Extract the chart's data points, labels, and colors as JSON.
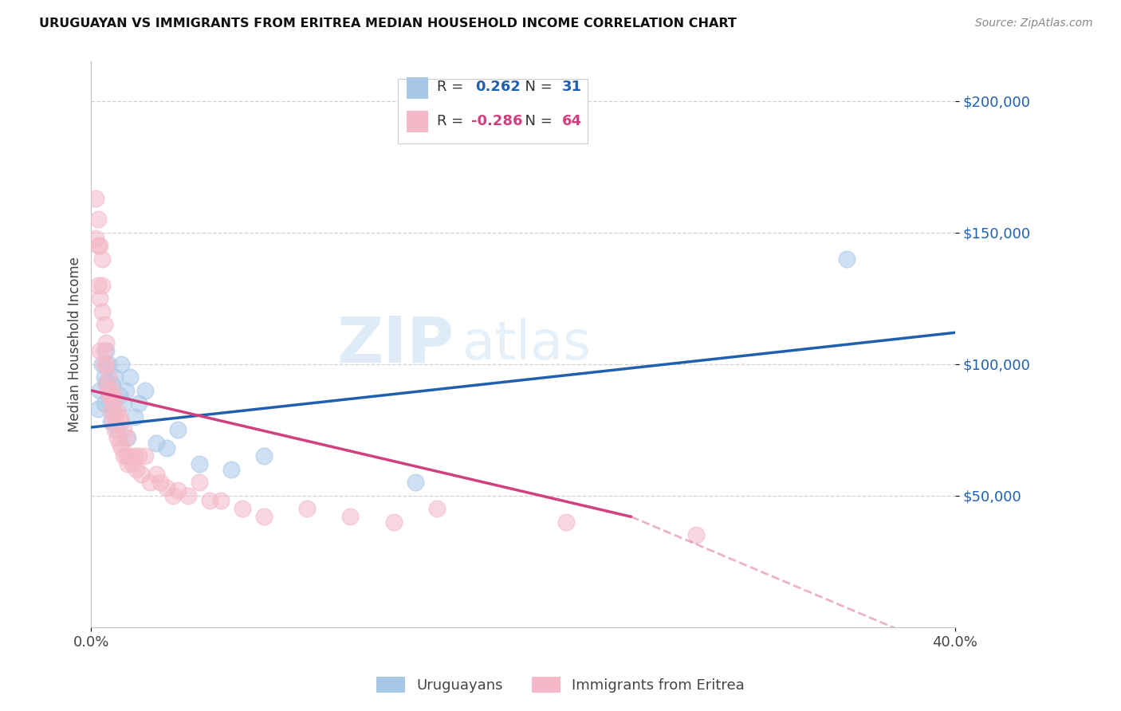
{
  "title": "URUGUAYAN VS IMMIGRANTS FROM ERITREA MEDIAN HOUSEHOLD INCOME CORRELATION CHART",
  "source": "Source: ZipAtlas.com",
  "ylabel": "Median Household Income",
  "xmin": 0.0,
  "xmax": 0.4,
  "ymin": 0,
  "ymax": 215000,
  "blue_color": "#a8c8e8",
  "pink_color": "#f4b8c8",
  "blue_line_color": "#2060b0",
  "pink_line_color": "#d04080",
  "watermark_zip": "ZIP",
  "watermark_atlas": "atlas",
  "uruguayan_x": [
    0.003,
    0.004,
    0.005,
    0.006,
    0.006,
    0.007,
    0.007,
    0.008,
    0.008,
    0.009,
    0.01,
    0.01,
    0.011,
    0.012,
    0.013,
    0.014,
    0.015,
    0.016,
    0.017,
    0.018,
    0.02,
    0.022,
    0.025,
    0.03,
    0.035,
    0.04,
    0.05,
    0.065,
    0.08,
    0.15,
    0.35
  ],
  "uruguayan_y": [
    83000,
    90000,
    100000,
    95000,
    85000,
    93000,
    105000,
    88000,
    100000,
    78000,
    92000,
    82000,
    95000,
    75000,
    88000,
    100000,
    85000,
    90000,
    72000,
    95000,
    80000,
    85000,
    90000,
    70000,
    68000,
    75000,
    62000,
    60000,
    65000,
    55000,
    140000
  ],
  "eritrea_x": [
    0.002,
    0.002,
    0.003,
    0.003,
    0.003,
    0.004,
    0.004,
    0.004,
    0.005,
    0.005,
    0.005,
    0.006,
    0.006,
    0.006,
    0.007,
    0.007,
    0.007,
    0.008,
    0.008,
    0.008,
    0.009,
    0.009,
    0.01,
    0.01,
    0.01,
    0.011,
    0.011,
    0.011,
    0.012,
    0.012,
    0.013,
    0.013,
    0.014,
    0.014,
    0.015,
    0.015,
    0.016,
    0.016,
    0.017,
    0.018,
    0.019,
    0.02,
    0.021,
    0.022,
    0.023,
    0.025,
    0.027,
    0.03,
    0.032,
    0.035,
    0.038,
    0.04,
    0.045,
    0.05,
    0.055,
    0.06,
    0.07,
    0.08,
    0.1,
    0.12,
    0.14,
    0.16,
    0.22,
    0.28
  ],
  "eritrea_y": [
    163000,
    148000,
    155000,
    130000,
    145000,
    105000,
    125000,
    145000,
    140000,
    120000,
    130000,
    105000,
    115000,
    100000,
    108000,
    100000,
    92000,
    90000,
    95000,
    88000,
    88000,
    82000,
    90000,
    85000,
    78000,
    87000,
    80000,
    75000,
    82000,
    72000,
    80000,
    70000,
    78000,
    68000,
    75000,
    65000,
    72000,
    65000,
    62000,
    65000,
    62000,
    65000,
    60000,
    65000,
    58000,
    65000,
    55000,
    58000,
    55000,
    53000,
    50000,
    52000,
    50000,
    55000,
    48000,
    48000,
    45000,
    42000,
    45000,
    42000,
    40000,
    45000,
    40000,
    35000
  ]
}
